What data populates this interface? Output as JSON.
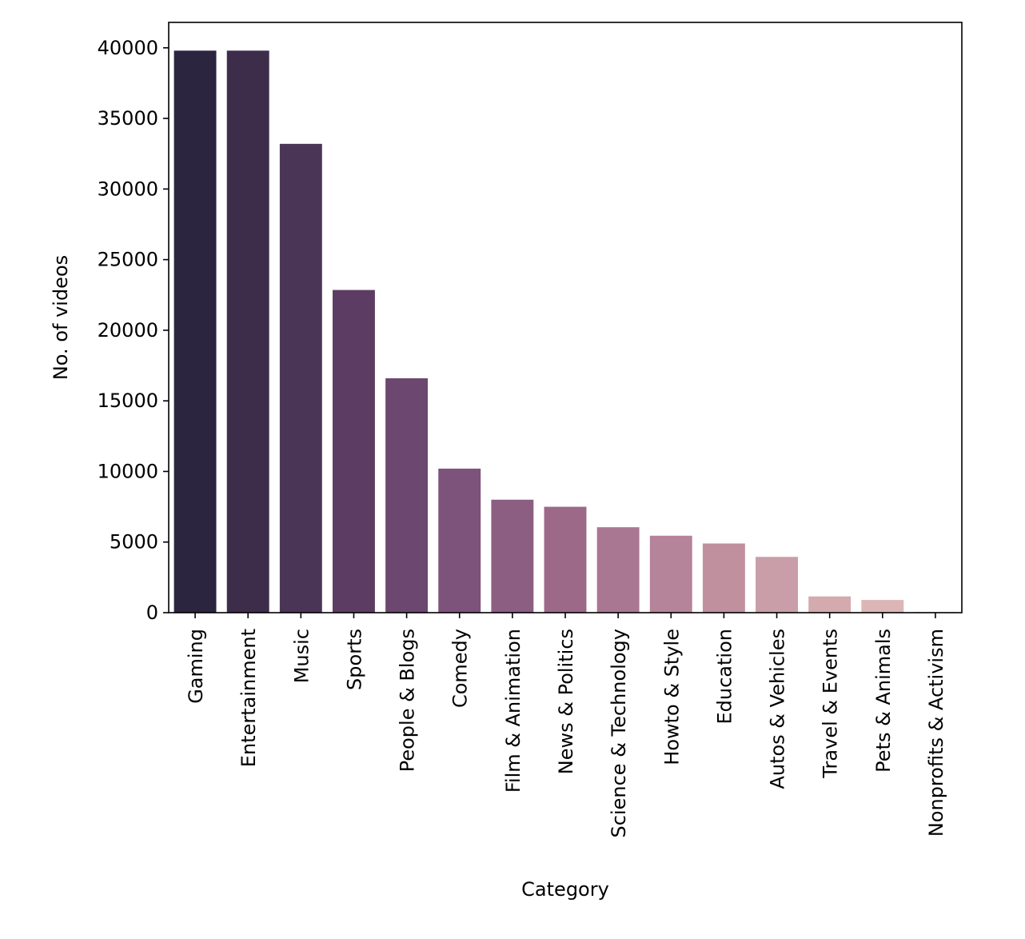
{
  "chart_data": {
    "type": "bar",
    "xlabel": "Category",
    "ylabel": "No. of videos",
    "ylim": [
      0,
      41800
    ],
    "yticks": [
      0,
      5000,
      10000,
      15000,
      20000,
      25000,
      30000,
      35000,
      40000
    ],
    "categories": [
      "Gaming",
      "Entertainment",
      "Music",
      "Sports",
      "People & Blogs",
      "Comedy",
      "Film & Animation",
      "News & Politics",
      "Science & Technology",
      "Howto & Style",
      "Education",
      "Autos & Vehicles",
      "Travel & Events",
      "Pets & Animals",
      "Nonprofits & Activism"
    ],
    "values": [
      39800,
      39800,
      33200,
      22850,
      16600,
      10200,
      8000,
      7500,
      6050,
      5450,
      4900,
      3950,
      1150,
      900,
      50
    ],
    "colors": [
      "#2c2540",
      "#3d2d4b",
      "#4b3557",
      "#5d3c63",
      "#6c476f",
      "#7d527b",
      "#8c5e82",
      "#9d6989",
      "#aa7792",
      "#b5839a",
      "#c0909f",
      "#c99ea8",
      "#d3aaae",
      "#dcb6b6",
      "#e6c2be"
    ],
    "grid": false,
    "legend": "none"
  }
}
